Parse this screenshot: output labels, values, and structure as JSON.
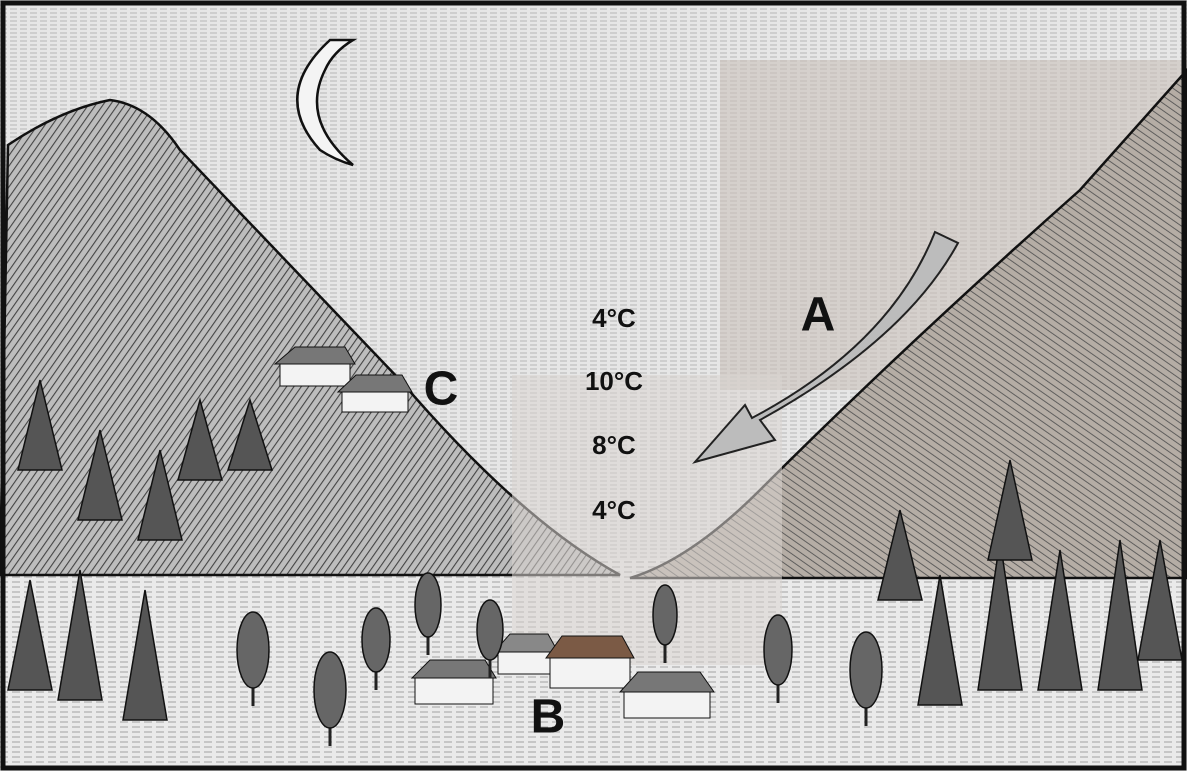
{
  "temperatures": [
    "4°C",
    "10°C",
    "8°C",
    "4°C"
  ],
  "points": {
    "a": "A",
    "b": "B",
    "c": "C"
  }
}
